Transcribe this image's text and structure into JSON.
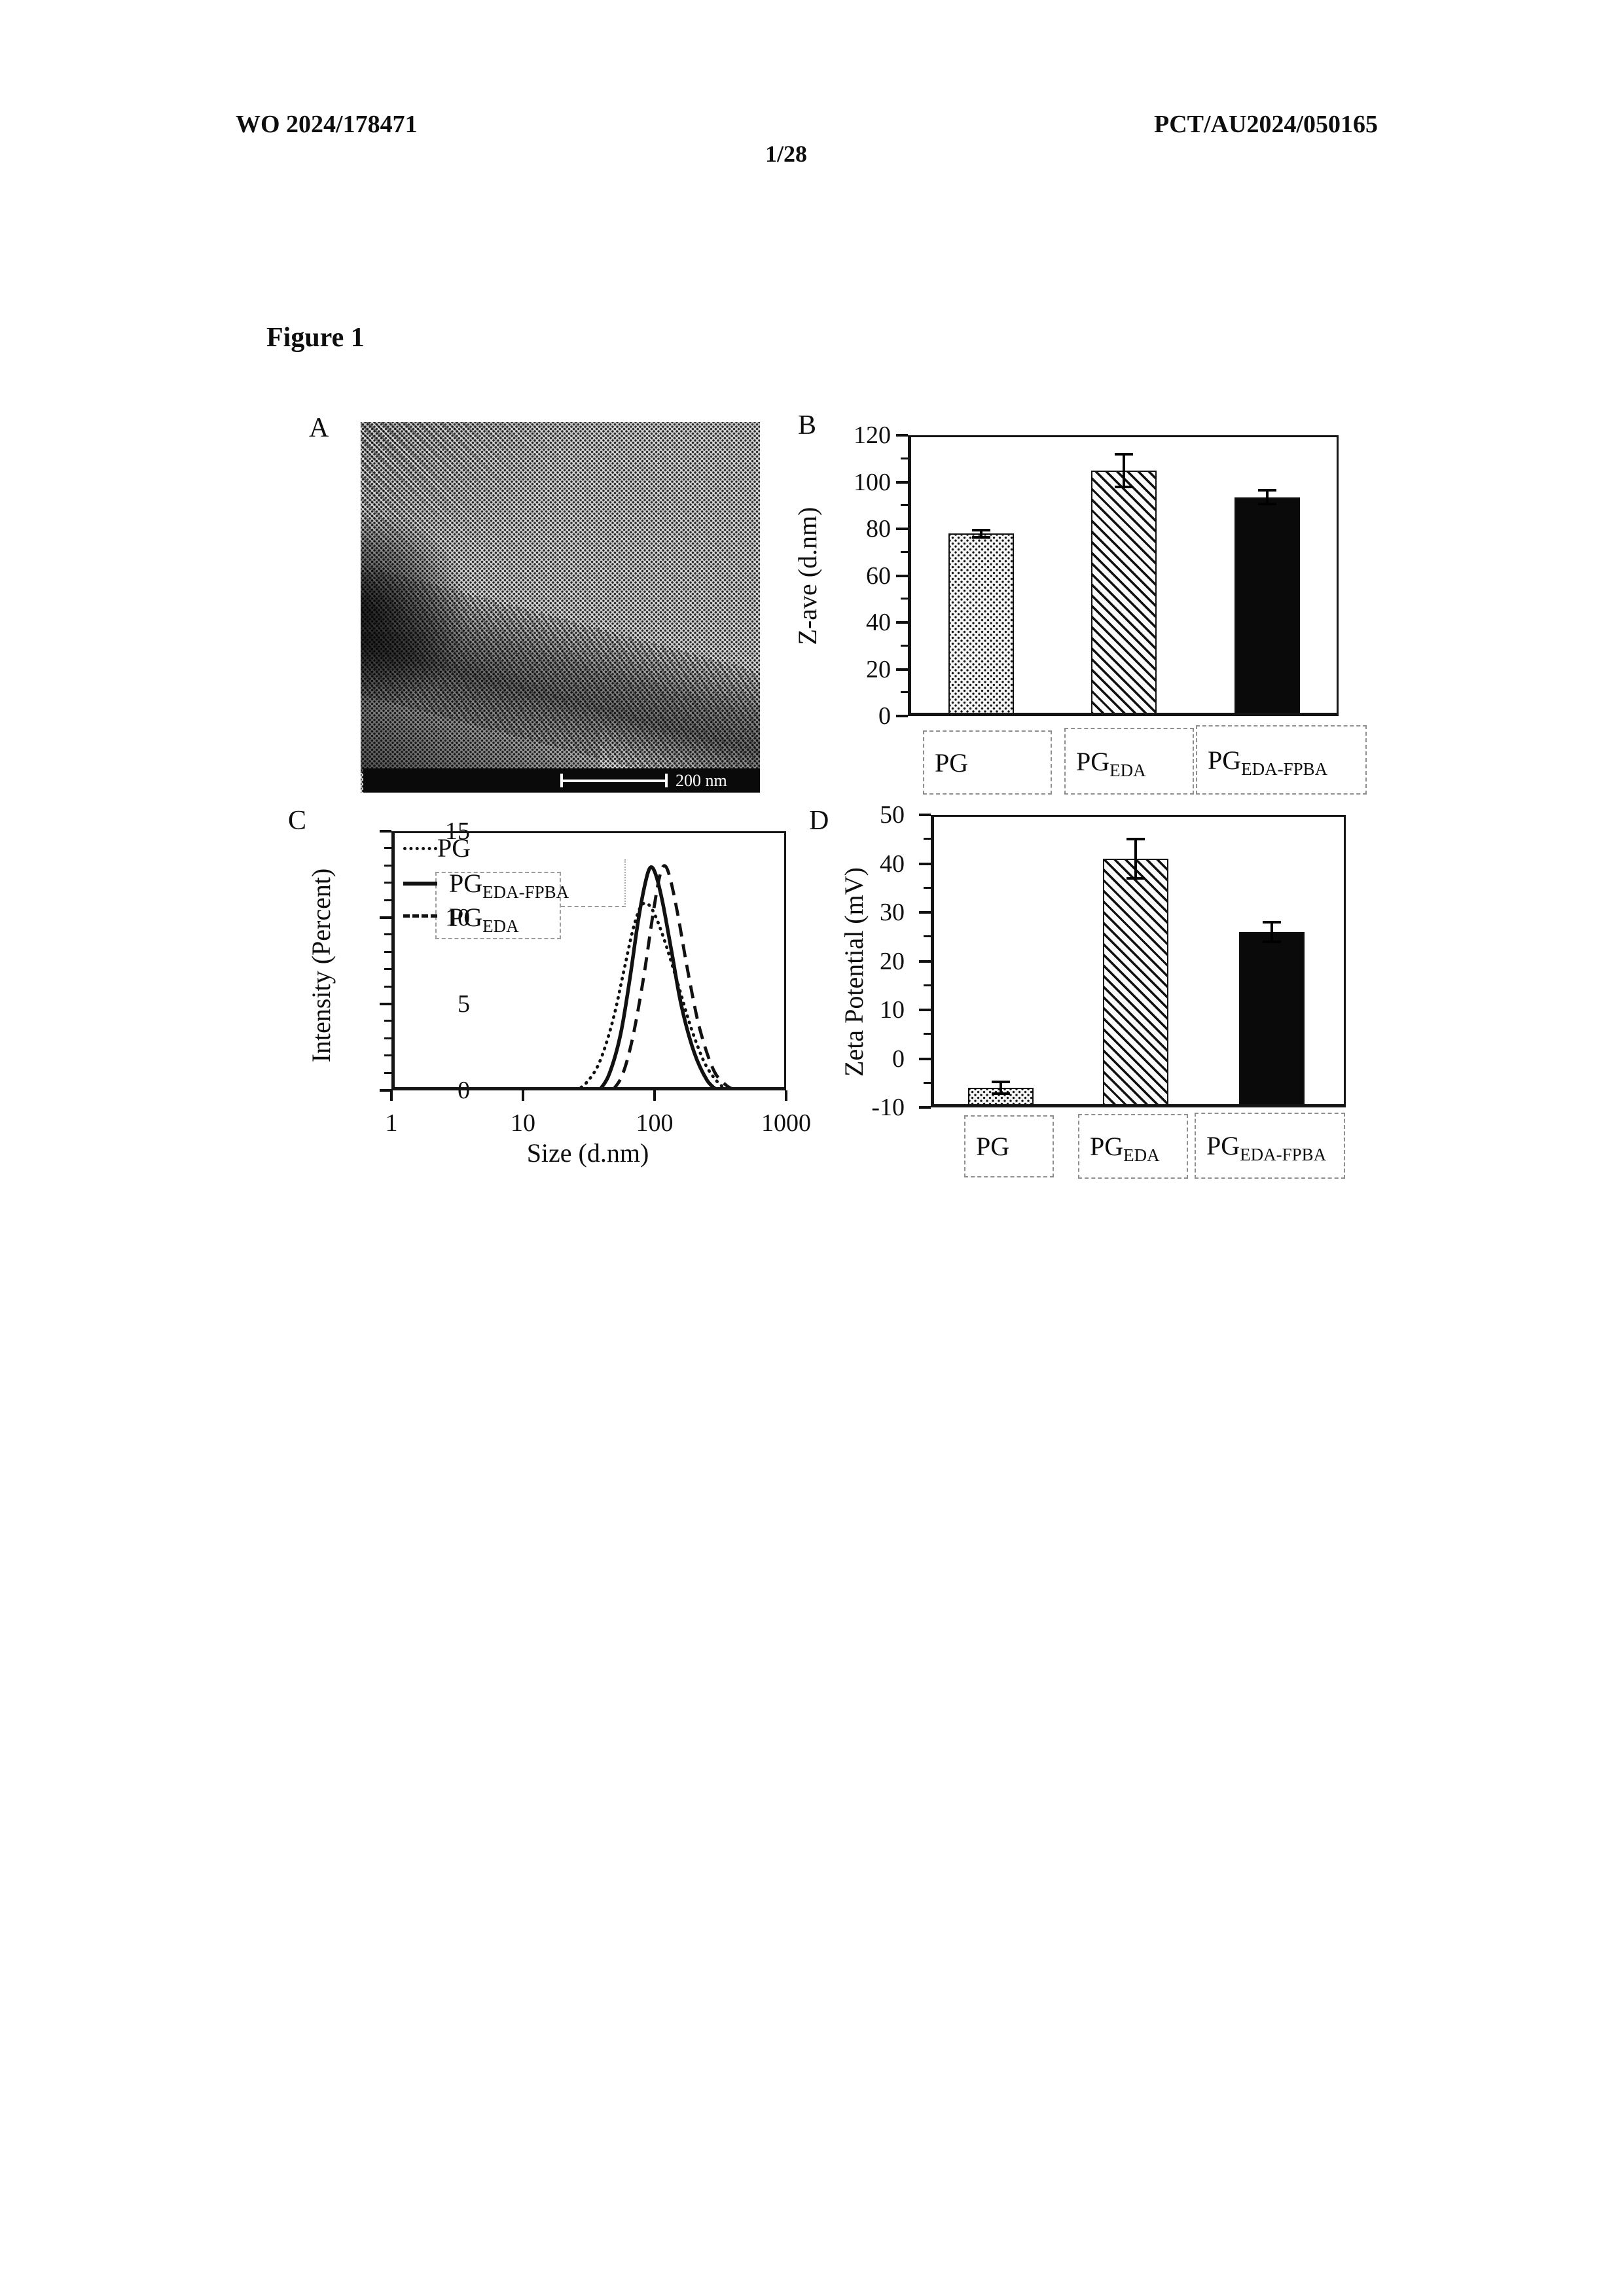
{
  "document": {
    "header_left": "WO 2024/178471",
    "header_right": "PCT/AU2024/050165",
    "page_number": "1/28",
    "figure_title": "Figure 1"
  },
  "panel_a": {
    "label": "A",
    "content": "transmission-electron-micrograph",
    "scale_bar_label": "200 nm"
  },
  "chart_data": [
    {
      "id": "B",
      "panel_label": "B",
      "type": "bar",
      "ylabel": "Z-ave (d.nm)",
      "ylim": [
        0,
        120
      ],
      "yticks": [
        0,
        20,
        40,
        60,
        80,
        100,
        120
      ],
      "ytick_minor_step": 10,
      "categories": [
        {
          "base": "PG",
          "sub": ""
        },
        {
          "base": "PG",
          "sub": "EDA"
        },
        {
          "base": "PG",
          "sub": "EDA-FPBA"
        }
      ],
      "values": [
        78,
        105,
        93.5
      ],
      "errors": [
        1.5,
        7,
        3
      ],
      "bar_patterns": [
        "stipple",
        "hatch",
        "solid"
      ]
    },
    {
      "id": "C",
      "panel_label": "C",
      "type": "line",
      "xlabel": "Size (d.nm)",
      "ylabel": "Intensity (Percent)",
      "xscale": "log",
      "xlim": [
        1,
        1000
      ],
      "ylim": [
        0,
        15
      ],
      "xticks": [
        1,
        10,
        100,
        1000
      ],
      "yticks": [
        0,
        5,
        10,
        15
      ],
      "ytick_minor_step": 1,
      "legend": [
        {
          "base": "PG",
          "sub": "",
          "style": "dotted"
        },
        {
          "base": "PG",
          "sub": "EDA-FPBA",
          "style": "solid"
        },
        {
          "base": "PG",
          "sub": "EDA",
          "style": "dashed"
        }
      ],
      "series": [
        {
          "name": "PG",
          "style": "dotted",
          "points": [
            [
              25,
              0
            ],
            [
              30,
              0.4
            ],
            [
              38,
              1.6
            ],
            [
              48,
              4.0
            ],
            [
              58,
              6.8
            ],
            [
              68,
              9.2
            ],
            [
              78,
              10.6
            ],
            [
              88,
              10.8
            ],
            [
              100,
              10.2
            ],
            [
              120,
              8.6
            ],
            [
              150,
              6.2
            ],
            [
              190,
              3.6
            ],
            [
              240,
              1.6
            ],
            [
              300,
              0.5
            ],
            [
              360,
              0
            ]
          ]
        },
        {
          "name": "PG EDA-FPBA",
          "style": "solid",
          "points": [
            [
              38,
              0
            ],
            [
              45,
              0.9
            ],
            [
              55,
              3.2
            ],
            [
              65,
              6.5
            ],
            [
              75,
              9.8
            ],
            [
              85,
              12.0
            ],
            [
              93,
              12.9
            ],
            [
              102,
              12.5
            ],
            [
              115,
              10.9
            ],
            [
              135,
              8.0
            ],
            [
              160,
              4.9
            ],
            [
              200,
              2.2
            ],
            [
              250,
              0.6
            ],
            [
              300,
              0
            ]
          ]
        },
        {
          "name": "PG EDA",
          "style": "dashed",
          "points": [
            [
              48,
              0
            ],
            [
              57,
              0.9
            ],
            [
              68,
              3.0
            ],
            [
              82,
              6.4
            ],
            [
              96,
              9.9
            ],
            [
              108,
              12.2
            ],
            [
              118,
              13.0
            ],
            [
              130,
              12.4
            ],
            [
              150,
              10.2
            ],
            [
              180,
              6.8
            ],
            [
              220,
              3.6
            ],
            [
              280,
              1.2
            ],
            [
              350,
              0.3
            ],
            [
              420,
              0
            ]
          ]
        }
      ]
    },
    {
      "id": "D",
      "panel_label": "D",
      "type": "bar",
      "ylabel": "Zeta Potential (mV)",
      "ylim": [
        -10,
        50
      ],
      "yticks": [
        -10,
        0,
        10,
        20,
        30,
        40,
        50
      ],
      "ytick_minor_step": 5,
      "categories": [
        {
          "base": "PG",
          "sub": ""
        },
        {
          "base": "PG",
          "sub": "EDA"
        },
        {
          "base": "PG",
          "sub": "EDA-FPBA"
        }
      ],
      "values": [
        -6,
        41,
        26
      ],
      "errors": [
        1.2,
        4,
        2
      ],
      "bar_patterns": [
        "stipple",
        "hatch",
        "solid"
      ]
    }
  ]
}
